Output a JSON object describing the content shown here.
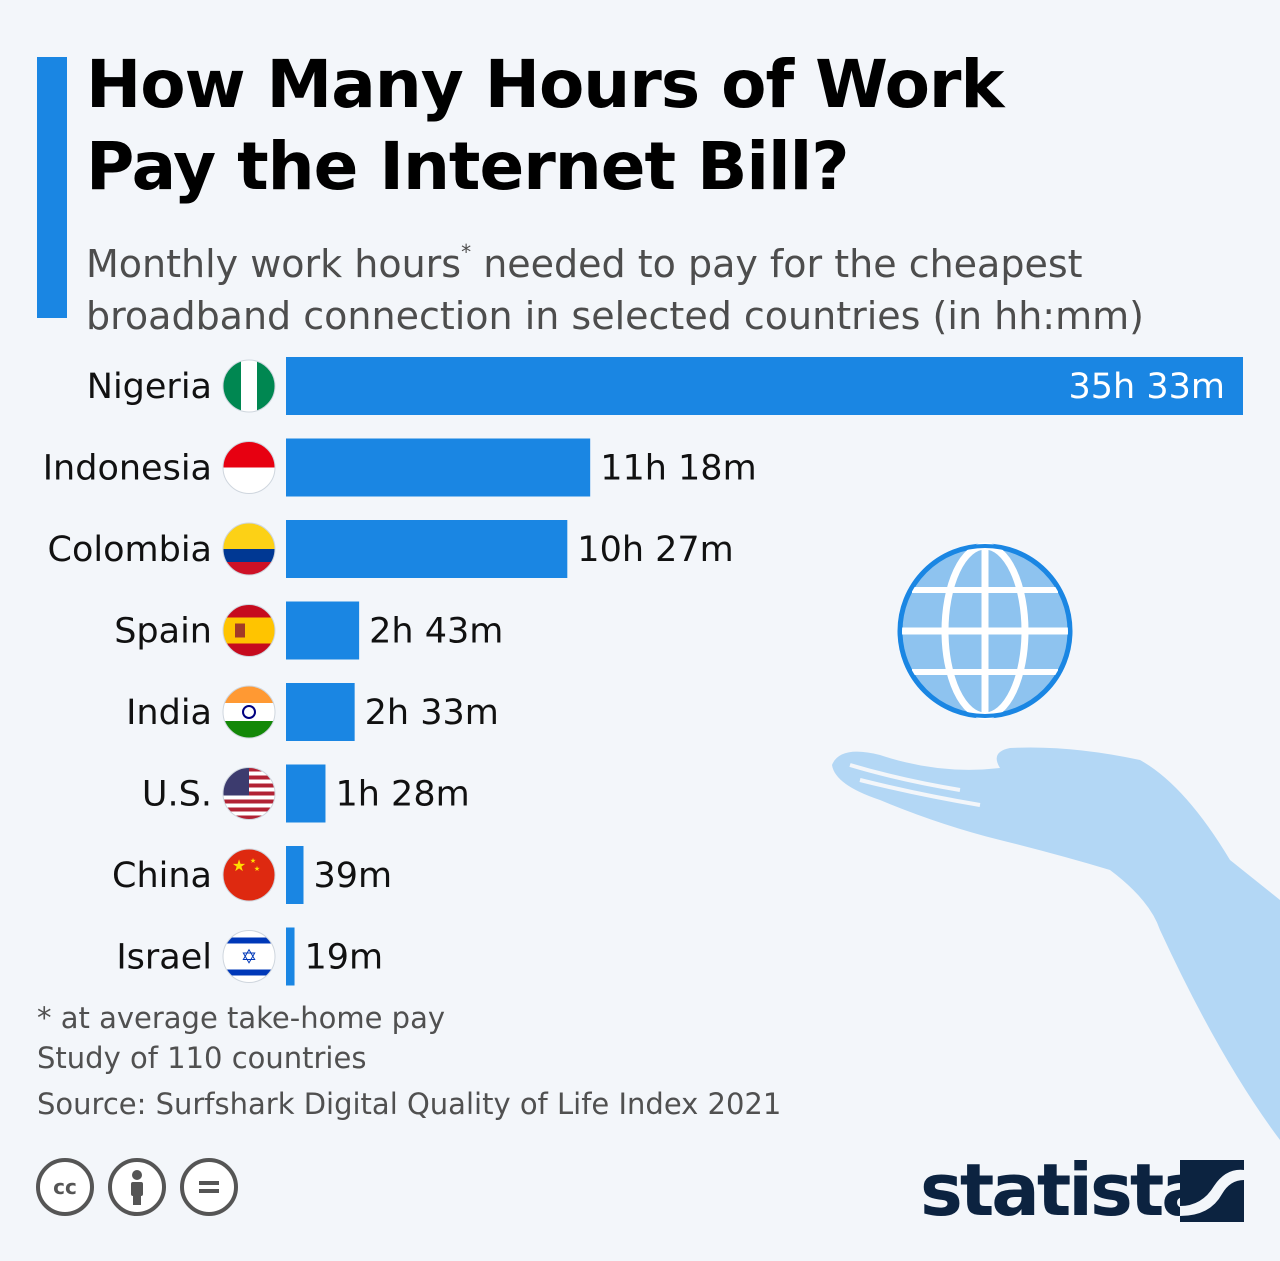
{
  "title_line1": "How Many Hours of Work",
  "title_line2": "Pay the Internet Bill?",
  "subtitle_part1": "Monthly work hours",
  "subtitle_star": "*",
  "subtitle_part2": " needed to pay for the cheapest broadband connection in selected countries (in hh:mm)",
  "chart_data": {
    "type": "bar",
    "orientation": "horizontal",
    "bar_color": "#1a86e3",
    "categories": [
      "Nigeria",
      "Indonesia",
      "Colombia",
      "Spain",
      "India",
      "U.S.",
      "China",
      "Israel"
    ],
    "values_minutes": [
      2133,
      678,
      627,
      163,
      153,
      88,
      39,
      19
    ],
    "value_labels": [
      "35h 33m",
      "11h 18m",
      "10h 27m",
      "2h 43m",
      "2h 33m",
      "1h 28m",
      "39m",
      "19m"
    ],
    "flags": [
      "nigeria-flag-icon",
      "indonesia-flag-icon",
      "colombia-flag-icon",
      "spain-flag-icon",
      "india-flag-icon",
      "us-flag-icon",
      "china-flag-icon",
      "israel-flag-icon"
    ]
  },
  "footnotes": {
    "note": "* at average take-home pay",
    "study": "Study of 110 countries",
    "source": "Source: Surfshark Digital Quality of Life Index 2021"
  },
  "license_icons": [
    "cc-icon",
    "by-icon",
    "nd-icon"
  ],
  "brand": "statista"
}
